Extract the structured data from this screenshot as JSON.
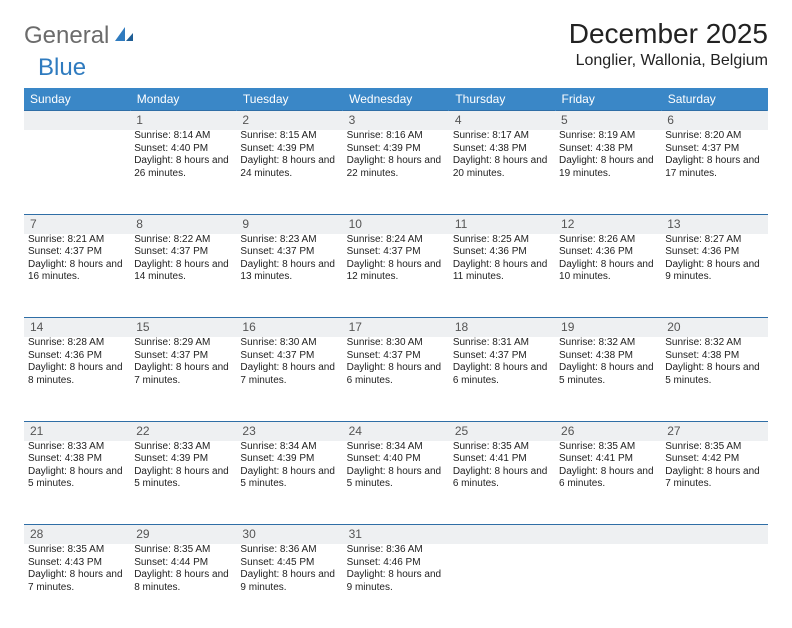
{
  "brand": {
    "part1": "General",
    "part2": "Blue"
  },
  "title": "December 2025",
  "location": "Longlier, Wallonia, Belgium",
  "theme": {
    "header_bg": "#3a87c7",
    "header_fg": "#ffffff",
    "daynum_bg": "#eef0f2",
    "rule": "#2f6ea6",
    "text": "#222222",
    "muted": "#6b6b6b"
  },
  "weekdays": [
    "Sunday",
    "Monday",
    "Tuesday",
    "Wednesday",
    "Thursday",
    "Friday",
    "Saturday"
  ],
  "weeks": [
    [
      null,
      {
        "n": "1",
        "sr": "8:14 AM",
        "ss": "4:40 PM",
        "dl": "8 hours and 26 minutes."
      },
      {
        "n": "2",
        "sr": "8:15 AM",
        "ss": "4:39 PM",
        "dl": "8 hours and 24 minutes."
      },
      {
        "n": "3",
        "sr": "8:16 AM",
        "ss": "4:39 PM",
        "dl": "8 hours and 22 minutes."
      },
      {
        "n": "4",
        "sr": "8:17 AM",
        "ss": "4:38 PM",
        "dl": "8 hours and 20 minutes."
      },
      {
        "n": "5",
        "sr": "8:19 AM",
        "ss": "4:38 PM",
        "dl": "8 hours and 19 minutes."
      },
      {
        "n": "6",
        "sr": "8:20 AM",
        "ss": "4:37 PM",
        "dl": "8 hours and 17 minutes."
      }
    ],
    [
      {
        "n": "7",
        "sr": "8:21 AM",
        "ss": "4:37 PM",
        "dl": "8 hours and 16 minutes."
      },
      {
        "n": "8",
        "sr": "8:22 AM",
        "ss": "4:37 PM",
        "dl": "8 hours and 14 minutes."
      },
      {
        "n": "9",
        "sr": "8:23 AM",
        "ss": "4:37 PM",
        "dl": "8 hours and 13 minutes."
      },
      {
        "n": "10",
        "sr": "8:24 AM",
        "ss": "4:37 PM",
        "dl": "8 hours and 12 minutes."
      },
      {
        "n": "11",
        "sr": "8:25 AM",
        "ss": "4:36 PM",
        "dl": "8 hours and 11 minutes."
      },
      {
        "n": "12",
        "sr": "8:26 AM",
        "ss": "4:36 PM",
        "dl": "8 hours and 10 minutes."
      },
      {
        "n": "13",
        "sr": "8:27 AM",
        "ss": "4:36 PM",
        "dl": "8 hours and 9 minutes."
      }
    ],
    [
      {
        "n": "14",
        "sr": "8:28 AM",
        "ss": "4:36 PM",
        "dl": "8 hours and 8 minutes."
      },
      {
        "n": "15",
        "sr": "8:29 AM",
        "ss": "4:37 PM",
        "dl": "8 hours and 7 minutes."
      },
      {
        "n": "16",
        "sr": "8:30 AM",
        "ss": "4:37 PM",
        "dl": "8 hours and 7 minutes."
      },
      {
        "n": "17",
        "sr": "8:30 AM",
        "ss": "4:37 PM",
        "dl": "8 hours and 6 minutes."
      },
      {
        "n": "18",
        "sr": "8:31 AM",
        "ss": "4:37 PM",
        "dl": "8 hours and 6 minutes."
      },
      {
        "n": "19",
        "sr": "8:32 AM",
        "ss": "4:38 PM",
        "dl": "8 hours and 5 minutes."
      },
      {
        "n": "20",
        "sr": "8:32 AM",
        "ss": "4:38 PM",
        "dl": "8 hours and 5 minutes."
      }
    ],
    [
      {
        "n": "21",
        "sr": "8:33 AM",
        "ss": "4:38 PM",
        "dl": "8 hours and 5 minutes."
      },
      {
        "n": "22",
        "sr": "8:33 AM",
        "ss": "4:39 PM",
        "dl": "8 hours and 5 minutes."
      },
      {
        "n": "23",
        "sr": "8:34 AM",
        "ss": "4:39 PM",
        "dl": "8 hours and 5 minutes."
      },
      {
        "n": "24",
        "sr": "8:34 AM",
        "ss": "4:40 PM",
        "dl": "8 hours and 5 minutes."
      },
      {
        "n": "25",
        "sr": "8:35 AM",
        "ss": "4:41 PM",
        "dl": "8 hours and 6 minutes."
      },
      {
        "n": "26",
        "sr": "8:35 AM",
        "ss": "4:41 PM",
        "dl": "8 hours and 6 minutes."
      },
      {
        "n": "27",
        "sr": "8:35 AM",
        "ss": "4:42 PM",
        "dl": "8 hours and 7 minutes."
      }
    ],
    [
      {
        "n": "28",
        "sr": "8:35 AM",
        "ss": "4:43 PM",
        "dl": "8 hours and 7 minutes."
      },
      {
        "n": "29",
        "sr": "8:35 AM",
        "ss": "4:44 PM",
        "dl": "8 hours and 8 minutes."
      },
      {
        "n": "30",
        "sr": "8:36 AM",
        "ss": "4:45 PM",
        "dl": "8 hours and 9 minutes."
      },
      {
        "n": "31",
        "sr": "8:36 AM",
        "ss": "4:46 PM",
        "dl": "8 hours and 9 minutes."
      },
      null,
      null,
      null
    ]
  ],
  "labels": {
    "sunrise": "Sunrise:",
    "sunset": "Sunset:",
    "daylight": "Daylight:"
  }
}
